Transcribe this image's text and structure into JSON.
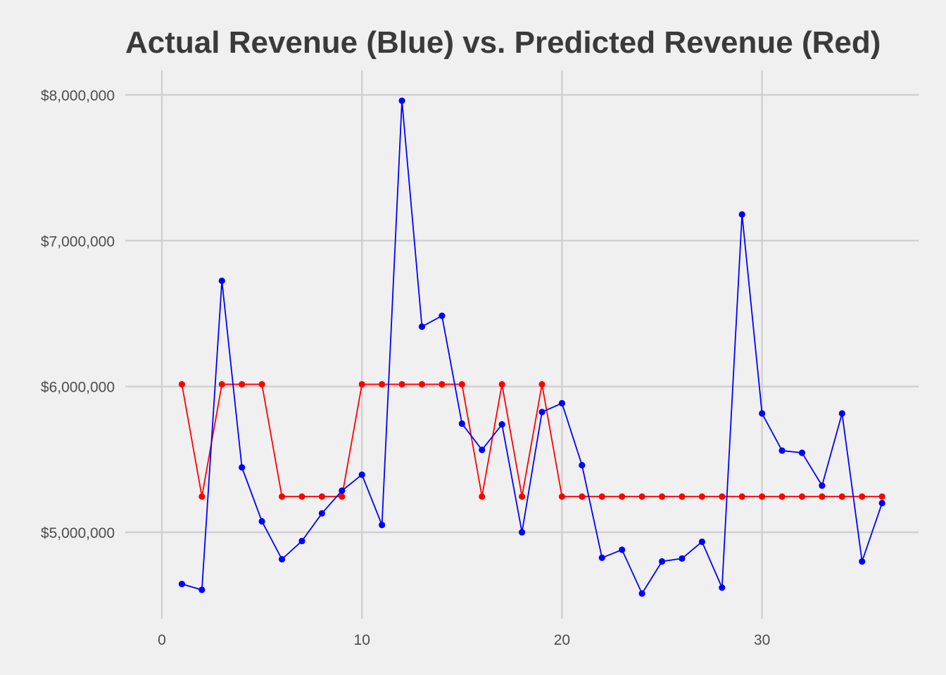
{
  "chart_data": {
    "type": "line",
    "title": "Actual Revenue (Blue) vs. Predicted Revenue (Red)",
    "xlabel": "",
    "ylabel": "",
    "xlim": [
      0,
      38
    ],
    "ylim": [
      4500000,
      8100000
    ],
    "x_ticks": [
      0,
      10,
      20,
      30
    ],
    "x_tick_labels": [
      "0",
      "10",
      "20",
      "30"
    ],
    "y_ticks": [
      5000000,
      6000000,
      7000000,
      8000000
    ],
    "y_tick_labels": [
      "$5,000,000",
      "$6,000,000",
      "$7,000,000",
      "$8,000,000"
    ],
    "grid": true,
    "legend": "none",
    "x": [
      1,
      2,
      3,
      4,
      5,
      6,
      7,
      8,
      9,
      10,
      11,
      12,
      13,
      14,
      15,
      16,
      17,
      18,
      19,
      20,
      21,
      22,
      23,
      24,
      25,
      26,
      27,
      28,
      29,
      30,
      31,
      32,
      33,
      34,
      35,
      36
    ],
    "series": [
      {
        "color": "#0000ff",
        "values": [
          4645000,
          4605000,
          6725000,
          5445000,
          5075000,
          4815000,
          4940000,
          5130000,
          5285000,
          5395000,
          5050000,
          7960000,
          6410000,
          6485000,
          5745000,
          5565000,
          5740000,
          5000000,
          5825000,
          5885000,
          5460000,
          4825000,
          4880000,
          4580000,
          4800000,
          4820000,
          4935000,
          4620000,
          7180000,
          5815000,
          5560000,
          5545000,
          5320000,
          5815000,
          4800000,
          5200000
        ]
      },
      {
        "color": "#ff0000",
        "values": [
          6015000,
          5245000,
          6015000,
          6015000,
          6015000,
          5245000,
          5245000,
          5245000,
          5245000,
          6015000,
          6015000,
          6015000,
          6015000,
          6015000,
          6015000,
          5245000,
          6015000,
          5245000,
          6015000,
          5245000,
          5245000,
          5245000,
          5245000,
          5245000,
          5245000,
          5245000,
          5245000,
          5245000,
          5245000,
          5245000,
          5245000,
          5245000,
          5245000,
          5245000,
          5245000,
          5245000
        ]
      }
    ]
  }
}
